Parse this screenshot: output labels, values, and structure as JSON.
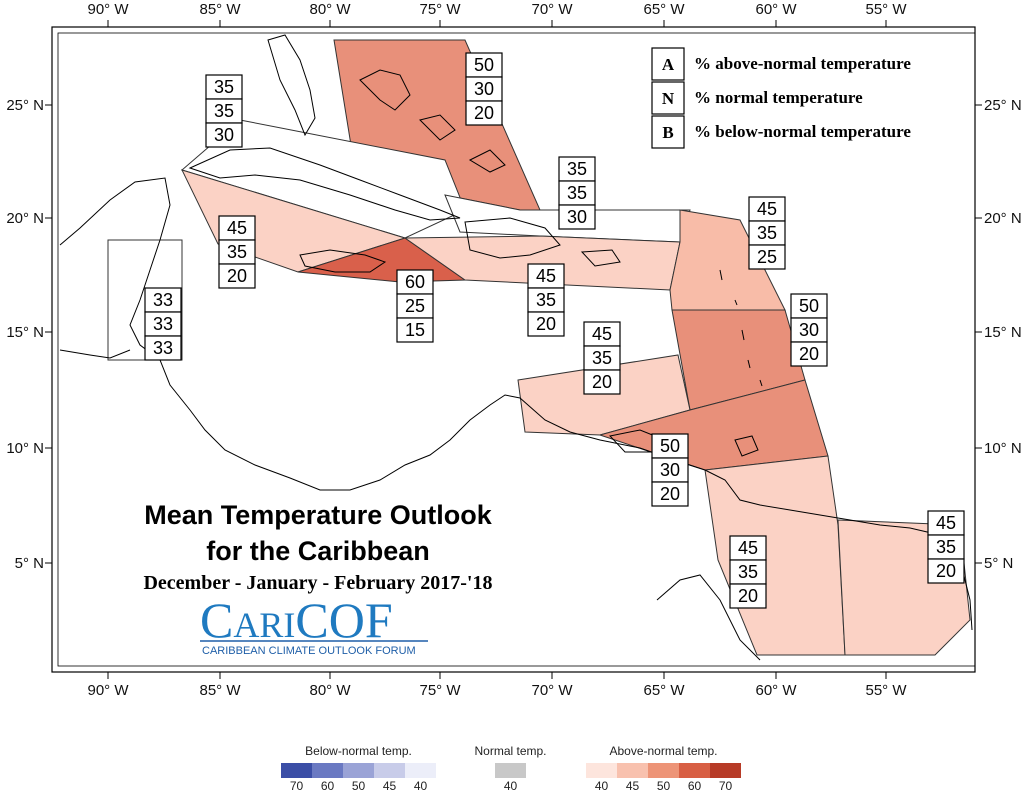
{
  "title": {
    "line1": "Mean Temperature Outlook",
    "line2": "for the Caribbean",
    "period": "December - January - February 2017-'18"
  },
  "logo": {
    "name": "CariCOF",
    "text": "CARICOF",
    "subtitle": "CARIBBEAN CLIMATE OUTLOOK FORUM"
  },
  "axes": {
    "lon_labels": [
      "90° W",
      "85° W",
      "80° W",
      "75° W",
      "70° W",
      "65° W",
      "60° W",
      "55° W"
    ],
    "lat_labels": [
      "25° N",
      "20° N",
      "15° N",
      "10° N",
      "5° N"
    ]
  },
  "key": [
    {
      "letter": "A",
      "text": "% above-normal temperature"
    },
    {
      "letter": "N",
      "text": "% normal temperature"
    },
    {
      "letter": "B",
      "text": "% below-normal temperature"
    }
  ],
  "regions": [
    {
      "id": "bahamas",
      "color": "#e8907a",
      "values": [
        "50",
        "30",
        "20"
      ]
    },
    {
      "id": "cuba",
      "color": "#ffffff",
      "values": [
        "35",
        "35",
        "30"
      ]
    },
    {
      "id": "cayman-west",
      "color": "#fbd2c5",
      "values": [
        "45",
        "35",
        "20"
      ]
    },
    {
      "id": "jamaica",
      "color": "#d9604b",
      "values": [
        "60",
        "25",
        "15"
      ]
    },
    {
      "id": "belize",
      "color": "#ffffff",
      "values": [
        "33",
        "33",
        "33"
      ]
    },
    {
      "id": "hispaniola-pr",
      "color": "#fbd2c5",
      "values": [
        "45",
        "35",
        "20"
      ]
    },
    {
      "id": "turks-north",
      "color": "#ffffff",
      "values": [
        "35",
        "35",
        "30"
      ]
    },
    {
      "id": "leeward",
      "color": "#f8bca8",
      "values": [
        "45",
        "35",
        "25"
      ]
    },
    {
      "id": "windward",
      "color": "#e8907a",
      "values": [
        "50",
        "30",
        "20"
      ]
    },
    {
      "id": "abc-islands",
      "color": "#fbd2c5",
      "values": [
        "45",
        "35",
        "20"
      ]
    },
    {
      "id": "trinidad",
      "color": "#e8907a",
      "values": [
        "50",
        "30",
        "20"
      ]
    },
    {
      "id": "guyana",
      "color": "#fbd2c5",
      "values": [
        "45",
        "35",
        "20"
      ]
    },
    {
      "id": "suriname-fg",
      "color": "#fbd2c5",
      "values": [
        "45",
        "35",
        "20"
      ]
    }
  ],
  "scale": {
    "below": {
      "title": "Below-normal temp.",
      "labels": [
        "70",
        "60",
        "50",
        "45",
        "40"
      ],
      "colors": [
        "#3b4ea6",
        "#6a79c2",
        "#9aa3d6",
        "#c8cce9",
        "#eceef9"
      ]
    },
    "normal": {
      "title": "Normal temp.",
      "labels": [
        "40"
      ],
      "colors": [
        "#c8c8c8"
      ]
    },
    "above": {
      "title": "Above-normal temp.",
      "labels": [
        "40",
        "45",
        "50",
        "60",
        "70"
      ],
      "colors": [
        "#fde5dd",
        "#f8c1ae",
        "#ed9477",
        "#d85f44",
        "#b73b27"
      ]
    }
  }
}
